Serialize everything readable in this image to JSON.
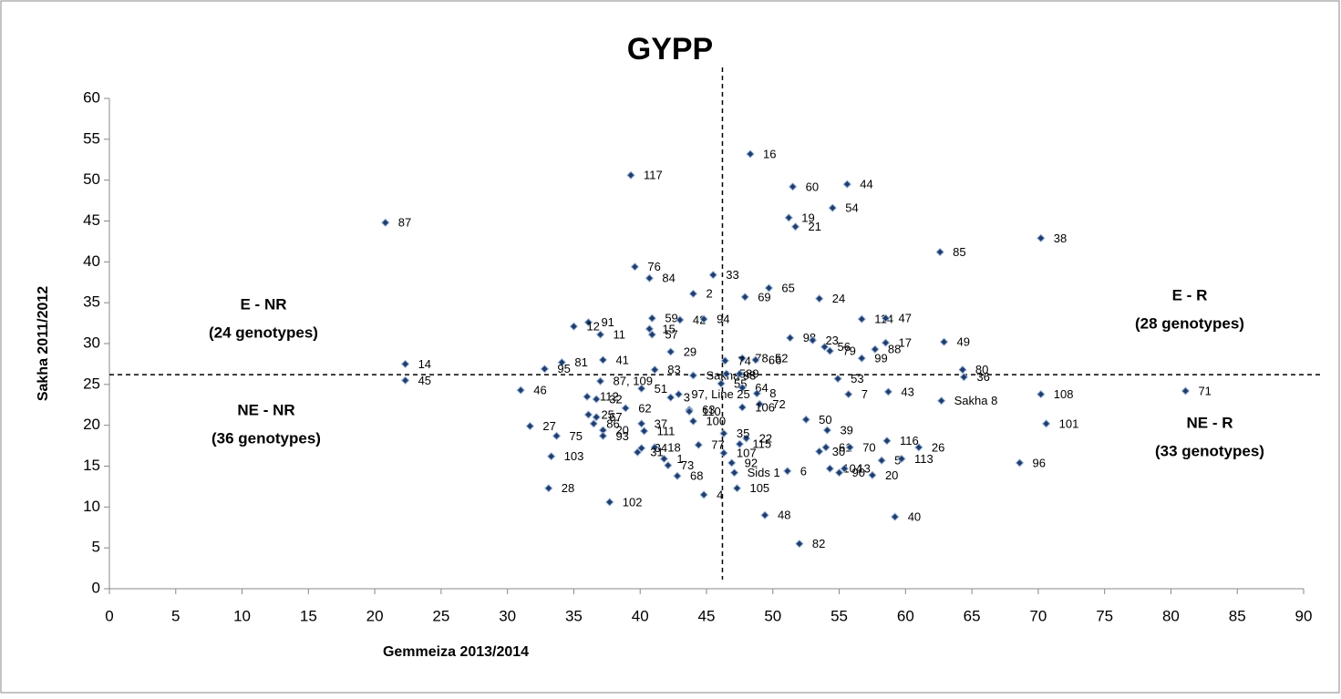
{
  "chart_data": {
    "type": "scatter",
    "title": "GYPP",
    "x_label": "Gemmeiza 2013/2014",
    "y_label": "Sakha 2011/2012",
    "xlim": [
      0,
      90
    ],
    "xticks": [
      0,
      5,
      10,
      15,
      20,
      25,
      30,
      35,
      40,
      45,
      50,
      55,
      60,
      65,
      70,
      75,
      80,
      85,
      90
    ],
    "ylim": [
      0,
      60
    ],
    "yticks": [
      0,
      5,
      10,
      15,
      20,
      25,
      30,
      35,
      40,
      45,
      50,
      55,
      60
    ],
    "grid": false,
    "color": "#1f3e6e",
    "vline": 46.2,
    "hline": 26.2,
    "annotations": [
      [
        "E - NR",
        "(24 genotypes)"
      ],
      [
        "NE - NR",
        "(36 genotypes)"
      ],
      [
        "E - R",
        "(28 genotypes)"
      ],
      [
        "NE - R",
        "(33 genotypes)"
      ]
    ],
    "labels": [
      "87",
      "14",
      "45",
      "117",
      "16",
      "60",
      "44",
      "54",
      "19",
      "21",
      "85",
      "38",
      "76",
      "84",
      "33",
      "2",
      "65",
      "69",
      "24",
      "114",
      "47",
      "91",
      "12",
      "11",
      "59",
      "42",
      "94",
      "15",
      "57",
      "29",
      "98",
      "23",
      "56",
      "79",
      "88",
      "17",
      "99",
      "49",
      "78, 52",
      "66",
      "74",
      "41",
      "81",
      "95",
      "83",
      "Sakha 93",
      "58",
      "9",
      "80",
      "36",
      "53",
      "87, 109",
      "55",
      "64",
      "8",
      "46",
      "108",
      "71",
      "7",
      "43",
      "Sakha 8",
      "51",
      "97, Line 25",
      "112",
      "32",
      "3",
      "63",
      "62",
      "72",
      "110",
      "106",
      "25",
      "67",
      "50",
      "101",
      "100",
      "27",
      "86",
      "20",
      "93",
      "37",
      "111",
      "75",
      "39",
      "116",
      "22",
      "26",
      "77",
      "35",
      "115",
      "30",
      "61",
      "70",
      "5",
      "34",
      "18",
      "103",
      "31",
      "107",
      "92",
      "1",
      "104",
      "13",
      "113",
      "96",
      "73",
      "Sids 1",
      "6",
      "90",
      "20",
      "68",
      "28",
      "105",
      "4",
      "102",
      "48",
      "40",
      "82"
    ],
    "x": [
      20.8,
      22.3,
      22.3,
      39.3,
      48.3,
      51.5,
      55.6,
      54.5,
      51.2,
      51.7,
      62.6,
      70.2,
      39.6,
      40.7,
      45.5,
      44.0,
      49.7,
      47.9,
      53.5,
      56.7,
      58.5,
      36.1,
      35.0,
      37.0,
      40.9,
      43.0,
      44.8,
      40.7,
      40.9,
      42.3,
      51.3,
      53.0,
      53.9,
      54.3,
      57.7,
      58.5,
      56.7,
      62.9,
      47.7,
      48.7,
      46.4,
      37.2,
      34.1,
      32.8,
      41.1,
      44.0,
      46.5,
      47.5,
      64.3,
      64.4,
      54.9,
      37.0,
      46.1,
      47.7,
      48.8,
      31.0,
      70.2,
      81.1,
      55.7,
      58.7,
      62.7,
      40.1,
      42.9,
      36.0,
      36.7,
      42.3,
      43.7,
      38.9,
      49.0,
      43.7,
      47.7,
      36.1,
      36.7,
      52.5,
      70.6,
      44.0,
      31.7,
      36.5,
      37.2,
      37.2,
      40.1,
      40.3,
      33.7,
      54.1,
      58.6,
      48.0,
      61.0,
      44.4,
      46.3,
      47.5,
      53.5,
      54.0,
      55.8,
      58.2,
      40.1,
      41.1,
      33.3,
      39.8,
      46.3,
      46.9,
      41.8,
      54.3,
      55.4,
      59.7,
      68.6,
      42.1,
      47.1,
      51.1,
      55.0,
      57.5,
      42.8,
      33.1,
      47.3,
      44.8,
      37.7,
      49.4,
      59.2,
      52.0
    ],
    "values": [
      44.8,
      27.5,
      25.5,
      50.6,
      53.2,
      49.2,
      49.5,
      46.6,
      45.4,
      44.3,
      41.2,
      42.9,
      39.4,
      38.0,
      38.4,
      36.1,
      36.8,
      35.7,
      35.5,
      33.0,
      33.1,
      32.6,
      32.1,
      31.1,
      33.1,
      32.9,
      33.0,
      31.8,
      31.1,
      29.0,
      30.7,
      30.4,
      29.6,
      29.1,
      29.3,
      30.1,
      28.2,
      30.2,
      28.2,
      28.0,
      27.9,
      28.0,
      27.7,
      26.9,
      26.8,
      26.1,
      26.3,
      26.3,
      26.8,
      25.9,
      25.7,
      25.4,
      25.1,
      24.6,
      23.9,
      24.3,
      23.8,
      24.2,
      23.8,
      24.1,
      23.0,
      24.5,
      23.8,
      23.5,
      23.2,
      23.4,
      21.9,
      22.1,
      22.6,
      21.7,
      22.2,
      21.3,
      21.0,
      20.7,
      20.2,
      20.5,
      19.9,
      20.2,
      19.4,
      18.7,
      20.2,
      19.3,
      18.7,
      19.4,
      18.1,
      18.4,
      17.3,
      17.6,
      19.0,
      17.7,
      16.8,
      17.3,
      17.3,
      15.7,
      17.2,
      17.3,
      16.2,
      16.7,
      16.6,
      15.4,
      15.9,
      14.7,
      14.7,
      15.9,
      15.4,
      15.1,
      14.2,
      14.4,
      14.2,
      13.9,
      13.8,
      12.3,
      12.3,
      11.5,
      10.6,
      9.0,
      8.8,
      5.5
    ]
  }
}
